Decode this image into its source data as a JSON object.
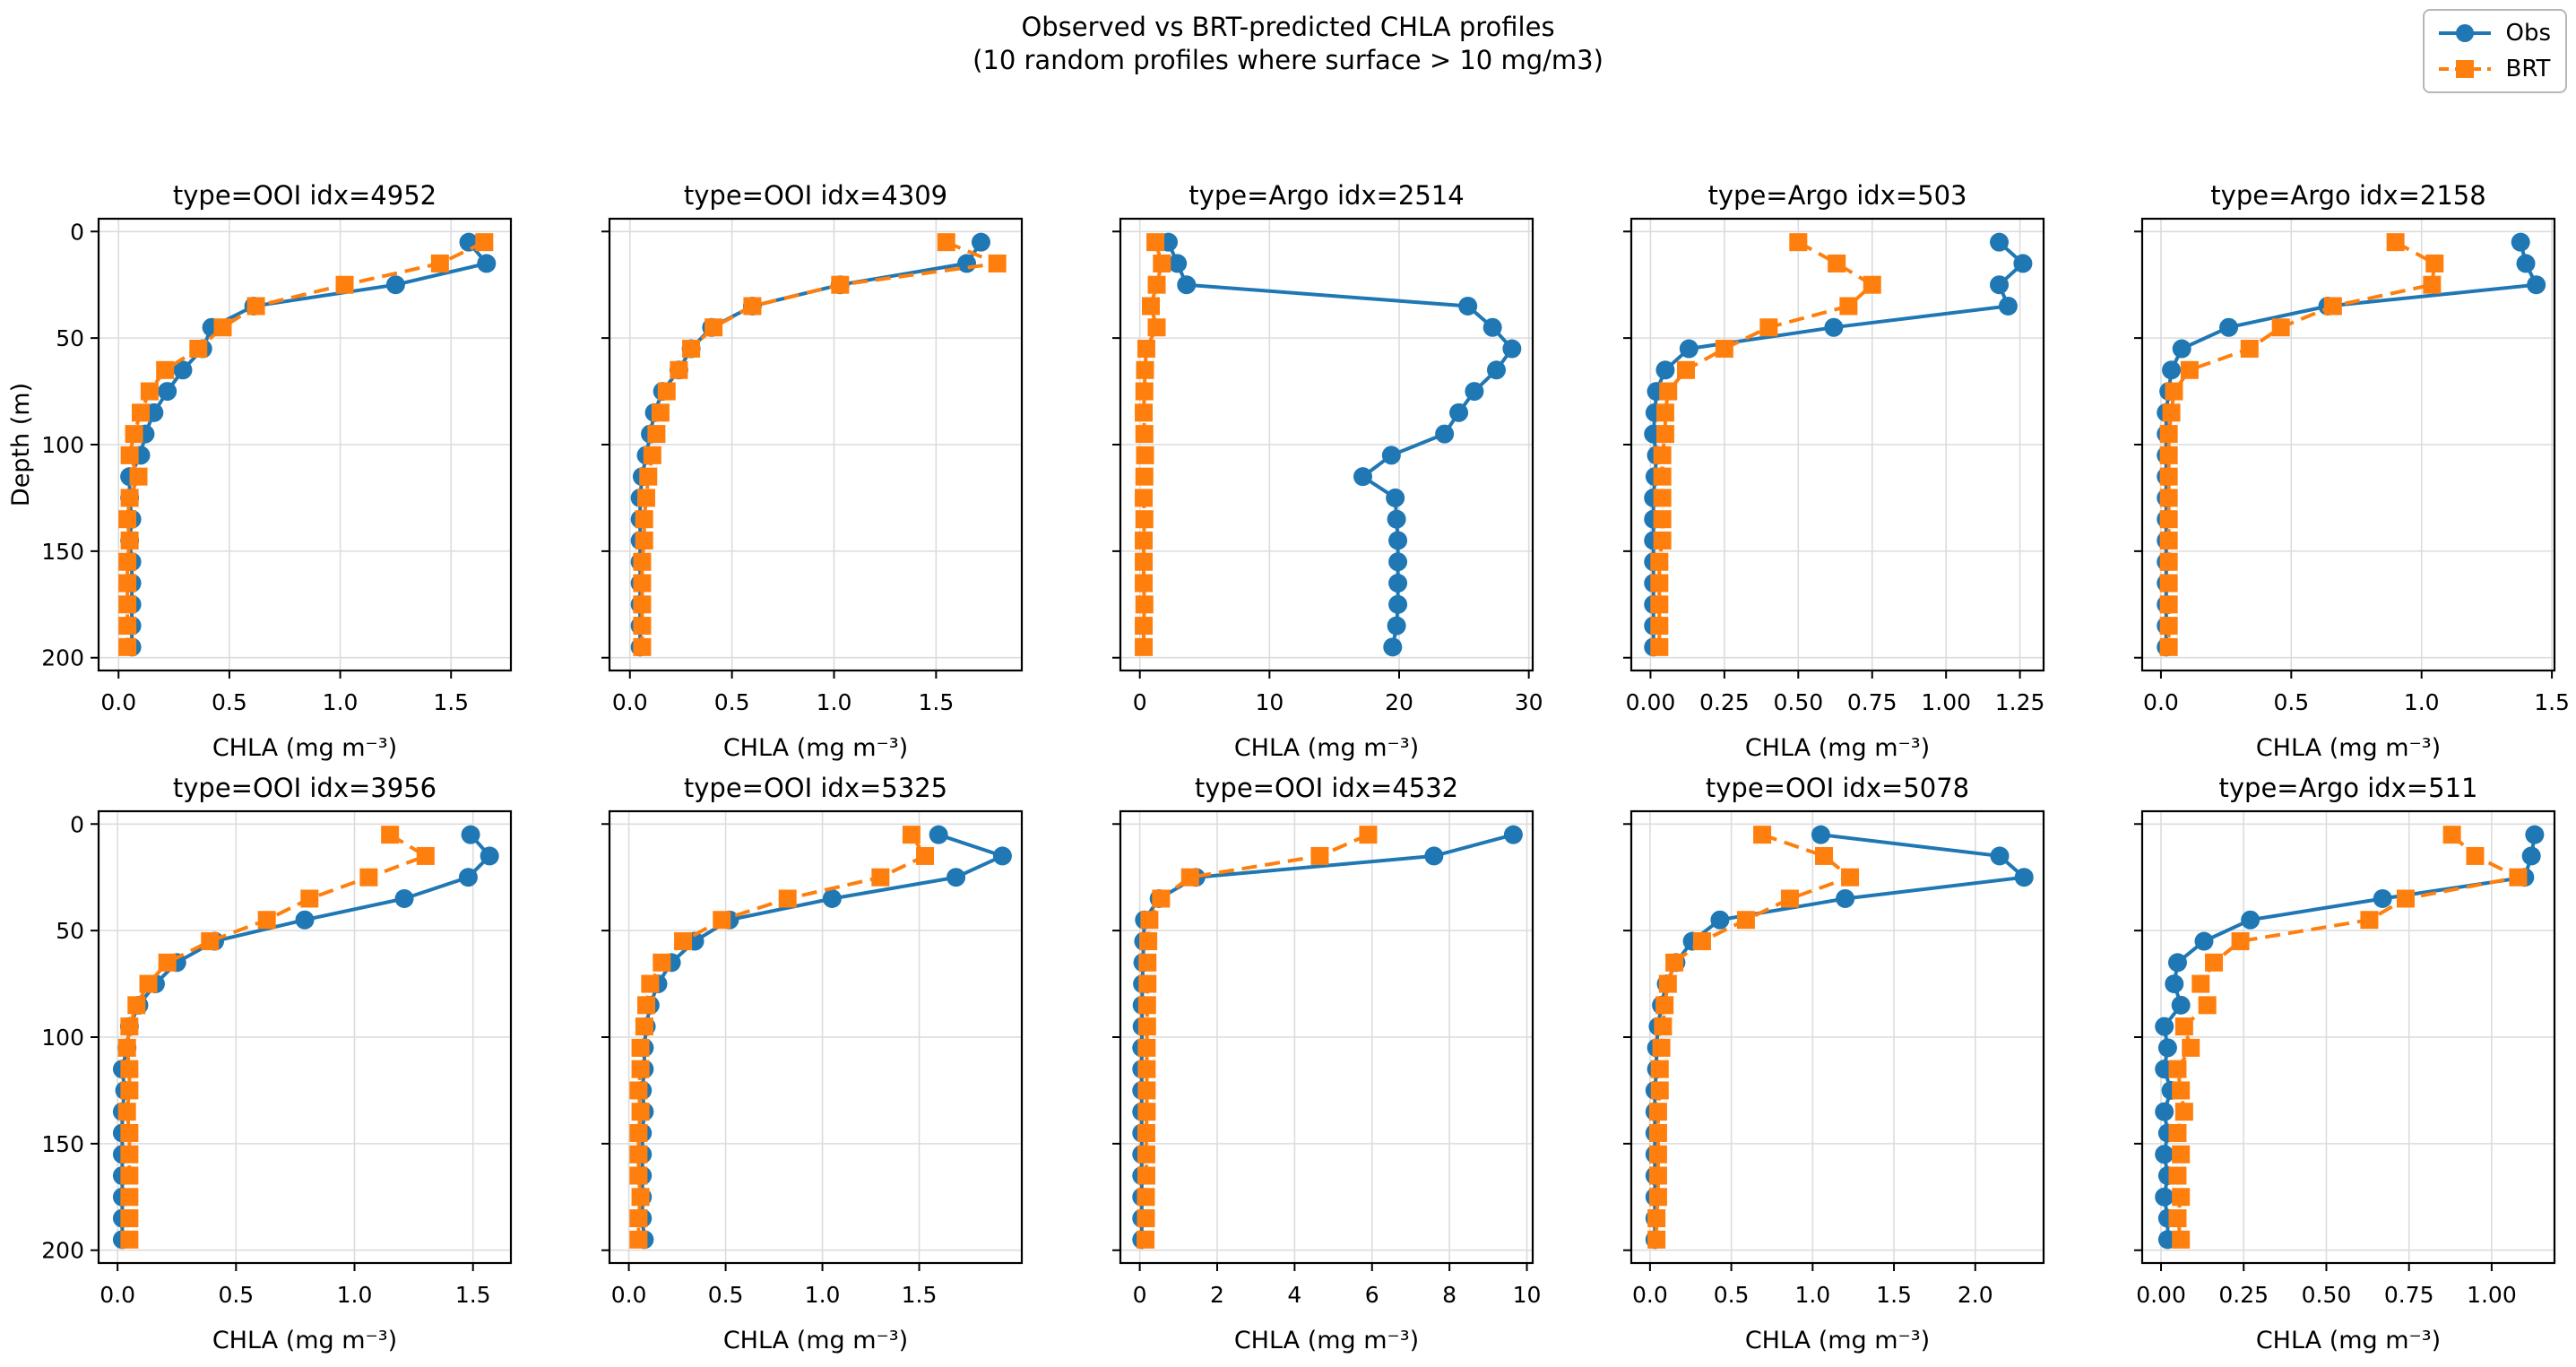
{
  "figure": {
    "suptitle_line1": "Observed vs BRT-predicted CHLA profiles",
    "suptitle_line2": "(10 random profiles where surface > 10 mg/m3)"
  },
  "legend": {
    "position": "upper-right",
    "items": [
      {
        "label": "Obs",
        "color": "#1f77b4",
        "marker": "circle",
        "linestyle": "solid"
      },
      {
        "label": "BRT",
        "color": "#ff7f0e",
        "marker": "square",
        "linestyle": "dashed"
      }
    ]
  },
  "axes_style": {
    "xlabel": "CHLA (mg m⁻³)",
    "ylabel": "Depth (m)",
    "yticks": [
      0,
      50,
      100,
      150,
      200
    ],
    "ytick_labels": [
      "0",
      "50",
      "100",
      "150",
      "200"
    ],
    "ylim": [
      -6,
      206
    ],
    "y_inverted": true,
    "grid": true,
    "grid_color": "#dcdcdc",
    "spine_color": "#000000",
    "obs_color": "#1f77b4",
    "brt_color": "#ff7f0e"
  },
  "chart_data": [
    {
      "type": "line",
      "title": "type=OOI idx=4952",
      "xlabel": "CHLA (mg m⁻³)",
      "ylabel": "Depth (m)",
      "xlim": [
        -0.09,
        1.77
      ],
      "xticks": [
        0,
        0.5,
        1,
        1.5
      ],
      "xtick_labels": [
        "0.0",
        "0.5",
        "1.0",
        "1.5"
      ],
      "depths": [
        5,
        15,
        25,
        35,
        45,
        55,
        65,
        75,
        85,
        95,
        105,
        115,
        125,
        135,
        145,
        155,
        165,
        175,
        185,
        195
      ],
      "series": [
        {
          "name": "Obs",
          "values": [
            1.58,
            1.66,
            1.25,
            0.61,
            0.42,
            0.38,
            0.29,
            0.22,
            0.16,
            0.12,
            0.1,
            0.05,
            0.05,
            0.06,
            0.05,
            0.06,
            0.06,
            0.06,
            0.06,
            0.06
          ]
        },
        {
          "name": "BRT",
          "values": [
            1.65,
            1.45,
            1.02,
            0.62,
            0.47,
            0.36,
            0.21,
            0.14,
            0.1,
            0.07,
            0.05,
            0.09,
            0.05,
            0.04,
            0.05,
            0.04,
            0.04,
            0.04,
            0.04,
            0.04
          ]
        }
      ]
    },
    {
      "type": "line",
      "title": "type=OOI idx=4309",
      "xlabel": "CHLA (mg m⁻³)",
      "ylabel": "Depth (m)",
      "xlim": [
        -0.1,
        1.92
      ],
      "xticks": [
        0,
        0.5,
        1,
        1.5
      ],
      "xtick_labels": [
        "0.0",
        "0.5",
        "1.0",
        "1.5"
      ],
      "depths": [
        5,
        15,
        25,
        35,
        45,
        55,
        65,
        75,
        85,
        95,
        105,
        115,
        125,
        135,
        145,
        155,
        165,
        175,
        185,
        195
      ],
      "series": [
        {
          "name": "Obs",
          "values": [
            1.72,
            1.65,
            1.03,
            0.6,
            0.4,
            0.3,
            0.24,
            0.16,
            0.12,
            0.1,
            0.08,
            0.06,
            0.05,
            0.05,
            0.05,
            0.05,
            0.05,
            0.05,
            0.05,
            0.05
          ]
        },
        {
          "name": "BRT",
          "values": [
            1.55,
            1.8,
            1.03,
            0.6,
            0.41,
            0.3,
            0.24,
            0.18,
            0.15,
            0.13,
            0.11,
            0.09,
            0.08,
            0.07,
            0.07,
            0.06,
            0.06,
            0.06,
            0.06,
            0.06
          ]
        }
      ]
    },
    {
      "type": "line",
      "title": "type=Argo idx=2514",
      "xlabel": "CHLA (mg m⁻³)",
      "ylabel": "Depth (m)",
      "xlim": [
        -1.5,
        30.3
      ],
      "xticks": [
        0,
        10,
        20,
        30
      ],
      "xtick_labels": [
        "0",
        "10",
        "20",
        "30"
      ],
      "depths": [
        5,
        15,
        25,
        35,
        45,
        55,
        65,
        75,
        85,
        95,
        105,
        115,
        125,
        135,
        145,
        155,
        165,
        175,
        185,
        195
      ],
      "series": [
        {
          "name": "Obs",
          "values": [
            2.2,
            2.9,
            3.6,
            25.3,
            27.2,
            28.7,
            27.5,
            25.8,
            24.6,
            23.5,
            19.4,
            17.2,
            19.7,
            19.8,
            19.9,
            19.9,
            19.9,
            19.9,
            19.8,
            19.5
          ]
        },
        {
          "name": "BRT",
          "values": [
            1.2,
            1.7,
            1.3,
            0.85,
            1.3,
            0.5,
            0.4,
            0.35,
            0.3,
            0.35,
            0.4,
            0.35,
            0.3,
            0.35,
            0.3,
            0.3,
            0.3,
            0.35,
            0.3,
            0.3
          ]
        }
      ]
    },
    {
      "type": "line",
      "title": "type=Argo idx=503",
      "xlabel": "CHLA (mg m⁻³)",
      "ylabel": "Depth (m)",
      "xlim": [
        -0.065,
        1.33
      ],
      "xticks": [
        0,
        0.25,
        0.5,
        0.75,
        1,
        1.25
      ],
      "xtick_labels": [
        "0.00",
        "0.25",
        "0.50",
        "0.75",
        "1.00",
        "1.25"
      ],
      "depths": [
        5,
        15,
        25,
        35,
        45,
        55,
        65,
        75,
        85,
        95,
        105,
        115,
        125,
        135,
        145,
        155,
        165,
        175,
        185,
        195
      ],
      "series": [
        {
          "name": "Obs",
          "values": [
            1.18,
            1.26,
            1.18,
            1.21,
            0.62,
            0.13,
            0.05,
            0.02,
            0.015,
            0.01,
            0.02,
            0.015,
            0.01,
            0.01,
            0.01,
            0.01,
            0.01,
            0.01,
            0.01,
            0.01
          ]
        },
        {
          "name": "BRT",
          "values": [
            0.5,
            0.63,
            0.75,
            0.67,
            0.4,
            0.25,
            0.12,
            0.06,
            0.05,
            0.05,
            0.04,
            0.04,
            0.04,
            0.04,
            0.04,
            0.03,
            0.03,
            0.03,
            0.03,
            0.03
          ]
        }
      ]
    },
    {
      "type": "line",
      "title": "type=Argo idx=2158",
      "xlabel": "CHLA (mg m⁻³)",
      "ylabel": "Depth (m)",
      "xlim": [
        -0.072,
        1.51
      ],
      "xticks": [
        0,
        0.5,
        1,
        1.5
      ],
      "xtick_labels": [
        "0.0",
        "0.5",
        "1.0",
        "1.5"
      ],
      "depths": [
        5,
        15,
        25,
        35,
        45,
        55,
        65,
        75,
        85,
        95,
        105,
        115,
        125,
        135,
        145,
        155,
        165,
        175,
        185,
        195
      ],
      "series": [
        {
          "name": "Obs",
          "values": [
            1.38,
            1.4,
            1.44,
            0.64,
            0.26,
            0.08,
            0.04,
            0.03,
            0.02,
            0.02,
            0.02,
            0.02,
            0.02,
            0.02,
            0.02,
            0.02,
            0.02,
            0.02,
            0.02,
            0.02
          ]
        },
        {
          "name": "BRT",
          "values": [
            0.9,
            1.05,
            1.04,
            0.66,
            0.46,
            0.34,
            0.11,
            0.05,
            0.04,
            0.03,
            0.03,
            0.03,
            0.03,
            0.03,
            0.03,
            0.03,
            0.03,
            0.03,
            0.03,
            0.03
          ]
        }
      ]
    },
    {
      "type": "line",
      "title": "type=OOI idx=3956",
      "xlabel": "CHLA (mg m⁻³)",
      "ylabel": "Depth (m)",
      "xlim": [
        -0.08,
        1.66
      ],
      "xticks": [
        0,
        0.5,
        1,
        1.5
      ],
      "xtick_labels": [
        "0.0",
        "0.5",
        "1.0",
        "1.5"
      ],
      "depths": [
        5,
        15,
        25,
        35,
        45,
        55,
        65,
        75,
        85,
        95,
        105,
        115,
        125,
        135,
        145,
        155,
        165,
        175,
        185,
        195
      ],
      "series": [
        {
          "name": "Obs",
          "values": [
            1.49,
            1.57,
            1.48,
            1.21,
            0.79,
            0.41,
            0.25,
            0.16,
            0.09,
            0.05,
            0.04,
            0.02,
            0.03,
            0.02,
            0.02,
            0.02,
            0.02,
            0.02,
            0.02,
            0.02
          ]
        },
        {
          "name": "BRT",
          "values": [
            1.15,
            1.3,
            1.06,
            0.81,
            0.63,
            0.39,
            0.21,
            0.13,
            0.08,
            0.05,
            0.04,
            0.05,
            0.05,
            0.04,
            0.05,
            0.05,
            0.05,
            0.05,
            0.05,
            0.05
          ]
        }
      ]
    },
    {
      "type": "line",
      "title": "type=OOI idx=5325",
      "xlabel": "CHLA (mg m⁻³)",
      "ylabel": "Depth (m)",
      "xlim": [
        -0.1,
        2.03
      ],
      "xticks": [
        0,
        0.5,
        1,
        1.5
      ],
      "xtick_labels": [
        "0.0",
        "0.5",
        "1.0",
        "1.5"
      ],
      "depths": [
        5,
        15,
        25,
        35,
        45,
        55,
        65,
        75,
        85,
        95,
        105,
        115,
        125,
        135,
        145,
        155,
        165,
        175,
        185,
        195
      ],
      "series": [
        {
          "name": "Obs",
          "values": [
            1.6,
            1.93,
            1.69,
            1.05,
            0.52,
            0.34,
            0.22,
            0.15,
            0.11,
            0.09,
            0.08,
            0.08,
            0.07,
            0.08,
            0.07,
            0.07,
            0.07,
            0.07,
            0.07,
            0.08
          ]
        },
        {
          "name": "BRT",
          "values": [
            1.46,
            1.53,
            1.3,
            0.82,
            0.48,
            0.28,
            0.17,
            0.11,
            0.09,
            0.08,
            0.06,
            0.06,
            0.05,
            0.06,
            0.05,
            0.05,
            0.05,
            0.06,
            0.05,
            0.05
          ]
        }
      ]
    },
    {
      "type": "line",
      "title": "type=OOI idx=4532",
      "xlabel": "CHLA (mg m⁻³)",
      "ylabel": "Depth (m)",
      "xlim": [
        -0.5,
        10.15
      ],
      "xticks": [
        0,
        2,
        4,
        6,
        8,
        10
      ],
      "xtick_labels": [
        "0",
        "2",
        "4",
        "6",
        "8",
        "10"
      ],
      "depths": [
        5,
        15,
        25,
        35,
        45,
        55,
        65,
        75,
        85,
        95,
        105,
        115,
        125,
        135,
        145,
        155,
        165,
        175,
        185,
        195
      ],
      "series": [
        {
          "name": "Obs",
          "values": [
            9.65,
            7.6,
            1.45,
            0.5,
            0.12,
            0.1,
            0.08,
            0.07,
            0.06,
            0.06,
            0.05,
            0.05,
            0.05,
            0.05,
            0.05,
            0.05,
            0.05,
            0.05,
            0.05,
            0.05
          ]
        },
        {
          "name": "BRT",
          "values": [
            5.9,
            4.65,
            1.3,
            0.55,
            0.25,
            0.22,
            0.2,
            0.2,
            0.19,
            0.19,
            0.18,
            0.18,
            0.18,
            0.18,
            0.17,
            0.17,
            0.17,
            0.16,
            0.16,
            0.15
          ]
        }
      ]
    },
    {
      "type": "line",
      "title": "type=OOI idx=5078",
      "xlabel": "CHLA (mg m⁻³)",
      "ylabel": "Depth (m)",
      "xlim": [
        -0.115,
        2.42
      ],
      "xticks": [
        0,
        0.5,
        1,
        1.5,
        2
      ],
      "xtick_labels": [
        "0.0",
        "0.5",
        "1.0",
        "1.5",
        "2.0"
      ],
      "depths": [
        5,
        15,
        25,
        35,
        45,
        55,
        65,
        75,
        85,
        95,
        105,
        115,
        125,
        135,
        145,
        155,
        165,
        175,
        185,
        195
      ],
      "series": [
        {
          "name": "Obs",
          "values": [
            1.05,
            2.15,
            2.3,
            1.2,
            0.43,
            0.26,
            0.16,
            0.1,
            0.07,
            0.05,
            0.04,
            0.04,
            0.03,
            0.03,
            0.03,
            0.03,
            0.03,
            0.03,
            0.03,
            0.03
          ]
        },
        {
          "name": "BRT",
          "values": [
            0.69,
            1.07,
            1.23,
            0.86,
            0.59,
            0.32,
            0.15,
            0.11,
            0.09,
            0.08,
            0.07,
            0.06,
            0.06,
            0.05,
            0.05,
            0.05,
            0.05,
            0.05,
            0.04,
            0.04
          ]
        }
      ]
    },
    {
      "type": "line",
      "title": "type=Argo idx=511",
      "xlabel": "CHLA (mg m⁻³)",
      "ylabel": "Depth (m)",
      "xlim": [
        -0.057,
        1.19
      ],
      "xticks": [
        0,
        0.25,
        0.5,
        0.75,
        1
      ],
      "xtick_labels": [
        "0.00",
        "0.25",
        "0.50",
        "0.75",
        "1.00"
      ],
      "depths": [
        5,
        15,
        25,
        35,
        45,
        55,
        65,
        75,
        85,
        95,
        105,
        115,
        125,
        135,
        145,
        155,
        165,
        175,
        185,
        195
      ],
      "series": [
        {
          "name": "Obs",
          "values": [
            1.13,
            1.12,
            1.1,
            0.67,
            0.27,
            0.13,
            0.05,
            0.04,
            0.06,
            0.01,
            0.02,
            0.01,
            0.03,
            0.01,
            0.02,
            0.01,
            0.02,
            0.01,
            0.02,
            0.02
          ]
        },
        {
          "name": "BRT",
          "values": [
            0.88,
            0.95,
            1.08,
            0.74,
            0.63,
            0.24,
            0.16,
            0.12,
            0.14,
            0.07,
            0.09,
            0.05,
            0.06,
            0.07,
            0.05,
            0.06,
            0.05,
            0.06,
            0.05,
            0.06
          ]
        }
      ]
    }
  ]
}
